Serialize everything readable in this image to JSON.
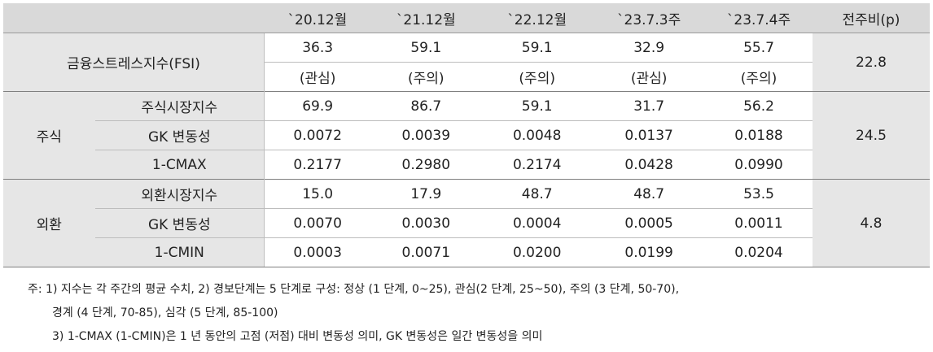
{
  "headers": [
    "`20.12월",
    "`21.12월",
    "`22.12월",
    "`23.7.3주",
    "`23.7.4주",
    "전주비(p)"
  ],
  "fsi": {
    "label": "금융스트레스지수(FSI)",
    "values": [
      "36.3",
      "59.1",
      "59.1",
      "32.9",
      "55.7"
    ],
    "status": [
      "(관심)",
      "(주의)",
      "(주의)",
      "(관심)",
      "(주의)"
    ],
    "change": "22.8"
  },
  "stock": {
    "group": "주식",
    "change": "24.5",
    "rows": [
      {
        "label": "주식시장지수",
        "values": [
          "69.9",
          "86.7",
          "59.1",
          "31.7",
          "56.2"
        ]
      },
      {
        "label": "GK 변동성",
        "values": [
          "0.0072",
          "0.0039",
          "0.0048",
          "0.0137",
          "0.0188"
        ]
      },
      {
        "label": "1-CMAX",
        "values": [
          "0.2177",
          "0.2980",
          "0.2174",
          "0.0428",
          "0.0990"
        ]
      }
    ]
  },
  "fx": {
    "group": "외환",
    "change": "4.8",
    "rows": [
      {
        "label": "외환시장지수",
        "values": [
          "15.0",
          "17.9",
          "48.7",
          "48.7",
          "53.5"
        ]
      },
      {
        "label": "GK 변동성",
        "values": [
          "0.0070",
          "0.0030",
          "0.0004",
          "0.0005",
          "0.0011"
        ]
      },
      {
        "label": "1-CMIN",
        "values": [
          "0.0003",
          "0.0071",
          "0.0200",
          "0.0199",
          "0.0204"
        ]
      }
    ]
  },
  "notes": [
    "주: 1) 지수는 각 주간의 평균 수치, 2) 경보단계는 5 단계로 구성: 정상 (1 단계, 0~25), 관심(2 단계, 25~50), 주의 (3 단계, 50-70),",
    "경계 (4 단계, 70-85), 심각 (5 단계, 85-100)",
    "3) 1-CMAX (1-CMIN)은 1 년 동안의 고점 (저점) 대비 변동성 의미, GK 변동성은 일간 변동성을 의미"
  ]
}
